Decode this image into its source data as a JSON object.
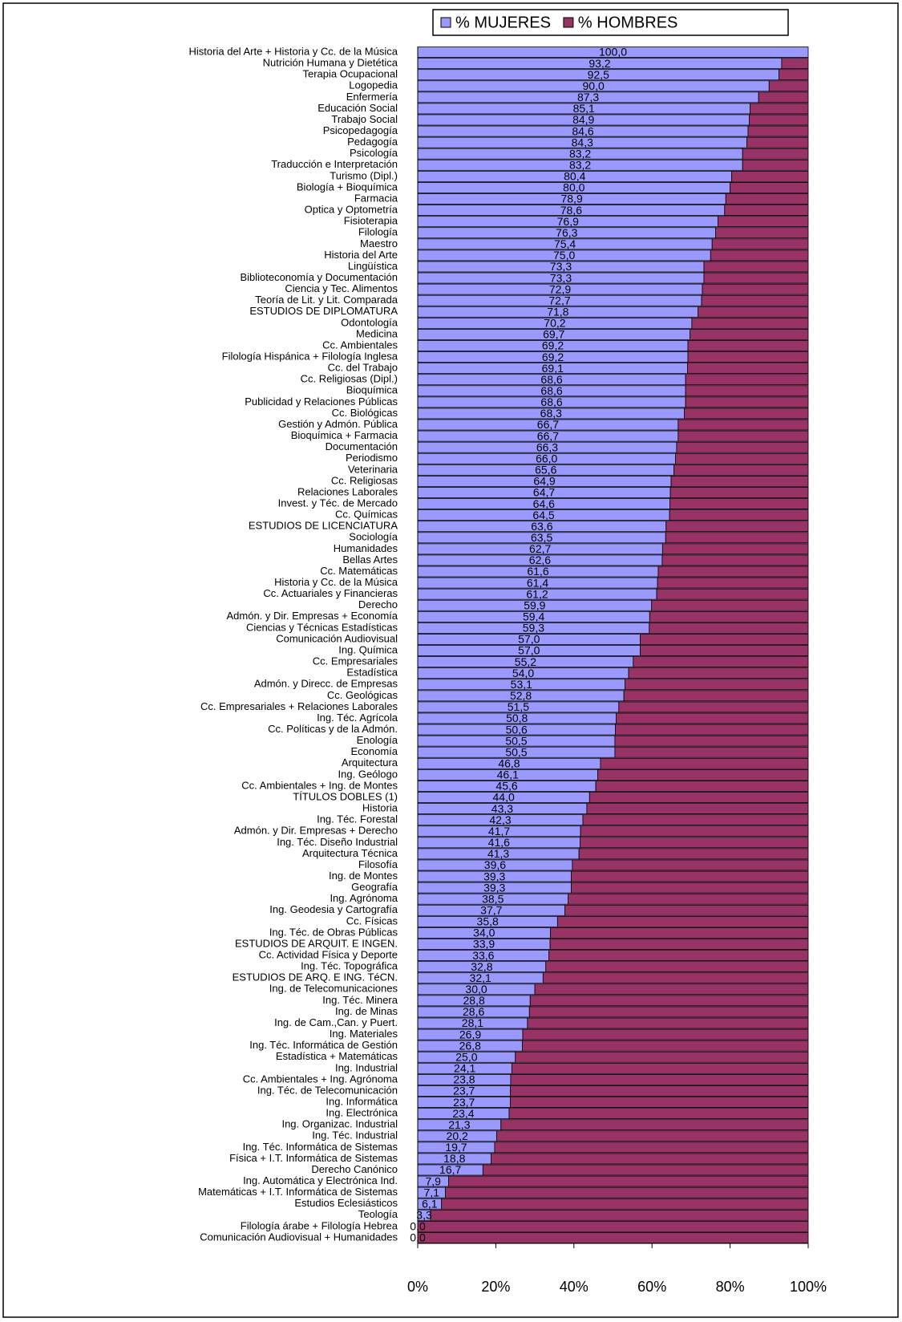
{
  "chart_data": {
    "type": "stacked_barh",
    "categories": [
      "Historia del Arte + Historia y Cc. de la Música",
      "Nutrición Humana y Dietética",
      "Terapia Ocupacional",
      "Logopedia",
      "Enfermería",
      "Educación Social",
      "Trabajo Social",
      "Psicopedagogía",
      "Pedagogía",
      "Psicología",
      "Traducción e Interpretación",
      "Turismo (Dipl.)",
      "Biología + Bioquímica",
      "Farmacia",
      "Optica y Optometría",
      "Fisioterapia",
      "Filología",
      "Maestro",
      "Historia del Arte",
      "Lingüística",
      "Biblioteconomía y Documentación",
      "Ciencia y Tec. Alimentos",
      "Teoría de Lit. y Lit. Comparada",
      "ESTUDIOS DE DIPLOMATURA",
      "Odontología",
      "Medicina",
      "Cc. Ambientales",
      "Filología Hispánica + Filología Inglesa",
      "Cc. del Trabajo",
      "Cc. Religiosas (Dipl.)",
      "Bioquímica",
      "Publicidad y Relaciones Públicas",
      "Cc. Biológicas",
      "Gestión y Admón. Pública",
      "Bioquímica + Farmacia",
      "Documentación",
      "Periodismo",
      "Veterinaria",
      "Cc. Religiosas",
      "Relaciones Laborales",
      "Invest. y Téc. de Mercado",
      "Cc. Químicas",
      "ESTUDIOS DE LICENCIATURA",
      "Sociología",
      "Humanidades",
      "Bellas Artes",
      "Cc. Matemáticas",
      "Historia y Cc. de la Música",
      "Cc. Actuariales y Financieras",
      "Derecho",
      "Admón. y Dir. Empresas + Economía",
      "Ciencias y Técnicas Estadísticas",
      "Comunicación Audiovisual",
      "Ing. Química",
      "Cc. Empresariales",
      "Estadística",
      "Admón. y Direcc. de Empresas",
      "Cc. Geológicas",
      "Cc. Empresariales + Relaciones Laborales",
      "Ing. Téc. Agrícola",
      "Cc. Políticas y de la Admón.",
      "Enología",
      "Economía",
      "Arquitectura",
      "Ing. Geólogo",
      "Cc. Ambientales + Ing. de Montes",
      "TÍTULOS DOBLES (1)",
      "Historia",
      "Ing. Téc. Forestal",
      "Admón. y Dir. Empresas + Derecho",
      "Ing. Téc. Diseño Industrial",
      "Arquitectura Técnica",
      "Filosofía",
      "Ing. de Montes",
      "Geografía",
      "Ing. Agrónoma",
      "Ing. Geodesia y Cartografía",
      "Cc. Físicas",
      "Ing. Téc. de Obras Públicas",
      "ESTUDIOS DE ARQUIT. E INGEN.",
      "Cc. Actividad Física y Deporte",
      "Ing. Téc. Topográfica",
      "ESTUDIOS DE ARQ. E ING. TéCN.",
      "Ing. de Telecomunicaciones",
      "Ing. Téc. Minera",
      "Ing. de Minas",
      "Ing. de Cam.,Can. y Puert.",
      "Ing. Materiales",
      "Ing. Téc. Informática de Gestión",
      "Estadística + Matemáticas",
      "Ing. Industrial",
      "Cc. Ambientales + Ing. Agrónoma",
      "Ing. Téc. de Telecomunicación",
      "Ing. Informática",
      "Ing. Electrónica",
      "Ing. Organizac. Industrial",
      "Ing. Téc. Industrial",
      "Ing. Téc. Informática de Sistemas",
      "Física + I.T. Informática de Sistemas",
      "Derecho Canónico",
      "Ing. Automática y Electrónica Ind.",
      "Matemáticas + I.T. Informática de Sistemas",
      "Estudios Eclesiásticos",
      "Teología",
      "Filología árabe + Filología Hebrea",
      "Comunicación Audiovisual + Humanidades"
    ],
    "series": [
      {
        "name": "% MUJERES",
        "color": "#9999ff",
        "values": [
          100,
          93.2,
          92.5,
          90,
          87.3,
          85.1,
          84.9,
          84.6,
          84.3,
          83.2,
          83.2,
          80.4,
          80,
          78.9,
          78.6,
          76.9,
          76.3,
          75.4,
          75,
          73.3,
          73.3,
          72.9,
          72.7,
          71.8,
          70.2,
          69.7,
          69.2,
          69.2,
          69.1,
          68.6,
          68.6,
          68.6,
          68.3,
          66.7,
          66.7,
          66.3,
          66,
          65.6,
          64.9,
          64.7,
          64.6,
          64.5,
          63.6,
          63.5,
          62.7,
          62.6,
          61.6,
          61.4,
          61.2,
          59.9,
          59.4,
          59.3,
          57,
          57,
          55.2,
          54,
          53.1,
          52.8,
          51.5,
          50.8,
          50.6,
          50.5,
          50.5,
          46.8,
          46.1,
          45.6,
          44,
          43.3,
          42.3,
          41.7,
          41.6,
          41.3,
          39.6,
          39.3,
          39.3,
          38.5,
          37.7,
          35.8,
          34,
          33.9,
          33.6,
          32.8,
          32.1,
          30,
          28.8,
          28.6,
          28.1,
          26.9,
          26.8,
          25,
          24.1,
          23.8,
          23.7,
          23.7,
          23.4,
          21.3,
          20.2,
          19.7,
          18.8,
          16.7,
          7.9,
          7.1,
          6.1,
          3.3,
          0,
          0
        ],
        "value_labels": [
          "100,0",
          "93,2",
          "92,5",
          "90,0",
          "87,3",
          "85,1",
          "84,9",
          "84,6",
          "84,3",
          "83,2",
          "83,2",
          "80,4",
          "80,0",
          "78,9",
          "78,6",
          "76,9",
          "76,3",
          "75,4",
          "75,0",
          "73,3",
          "73,3",
          "72,9",
          "72,7",
          "71,8",
          "70,2",
          "69,7",
          "69,2",
          "69,2",
          "69,1",
          "68,6",
          "68,6",
          "68,6",
          "68,3",
          "66,7",
          "66,7",
          "66,3",
          "66,0",
          "65,6",
          "64,9",
          "64,7",
          "64,6",
          "64,5",
          "63,6",
          "63,5",
          "62,7",
          "62,6",
          "61,6",
          "61,4",
          "61,2",
          "59,9",
          "59,4",
          "59,3",
          "57,0",
          "57,0",
          "55,2",
          "54,0",
          "53,1",
          "52,8",
          "51,5",
          "50,8",
          "50,6",
          "50,5",
          "50,5",
          "46,8",
          "46,1",
          "45,6",
          "44,0",
          "43,3",
          "42,3",
          "41,7",
          "41,6",
          "41,3",
          "39,6",
          "39,3",
          "39,3",
          "38,5",
          "37,7",
          "35,8",
          "34,0",
          "33,9",
          "33,6",
          "32,8",
          "32,1",
          "30,0",
          "28,8",
          "28,6",
          "28,1",
          "26,9",
          "26,8",
          "25,0",
          "24,1",
          "23,8",
          "23,7",
          "23,7",
          "23,4",
          "21,3",
          "20,2",
          "19,7",
          "18,8",
          "16,7",
          "7,9",
          "7,1",
          "6,1",
          "3,3",
          "0,0",
          "0,0"
        ]
      },
      {
        "name": "% HOMBRES",
        "color": "#993366",
        "values": [
          0,
          6.8,
          7.5,
          10,
          12.7,
          14.9,
          15.1,
          15.4,
          15.7,
          16.8,
          16.8,
          19.6,
          20,
          21.1,
          21.4,
          23.1,
          23.7,
          24.6,
          25,
          26.7,
          26.7,
          27.1,
          27.3,
          28.2,
          29.8,
          30.3,
          30.8,
          30.8,
          30.9,
          31.4,
          31.4,
          31.4,
          31.7,
          33.3,
          33.3,
          33.7,
          34,
          34.4,
          35.1,
          35.3,
          35.4,
          35.5,
          36.4,
          36.5,
          37.3,
          37.4,
          38.4,
          38.6,
          38.8,
          40.1,
          40.6,
          40.7,
          43,
          43,
          44.8,
          46,
          46.9,
          47.2,
          48.5,
          49.2,
          49.4,
          49.5,
          49.5,
          53.2,
          53.9,
          54.4,
          56,
          56.7,
          57.7,
          58.3,
          58.4,
          58.7,
          60.4,
          60.7,
          60.7,
          61.5,
          62.3,
          64.2,
          66,
          66.1,
          66.4,
          67.2,
          67.9,
          70,
          71.2,
          71.4,
          71.9,
          73.1,
          73.2,
          75,
          75.9,
          76.2,
          76.3,
          76.3,
          76.6,
          78.7,
          79.8,
          80.3,
          81.2,
          83.3,
          92.1,
          92.9,
          93.9,
          96.7,
          100,
          100
        ]
      }
    ],
    "xlim": [
      0,
      100
    ],
    "xticks": [
      {
        "value": 0,
        "label": "0%"
      },
      {
        "value": 20,
        "label": "20%"
      },
      {
        "value": 40,
        "label": "40%"
      },
      {
        "value": 60,
        "label": "60%"
      },
      {
        "value": 80,
        "label": "80%"
      },
      {
        "value": 100,
        "label": "100%"
      }
    ],
    "legend": "top"
  }
}
